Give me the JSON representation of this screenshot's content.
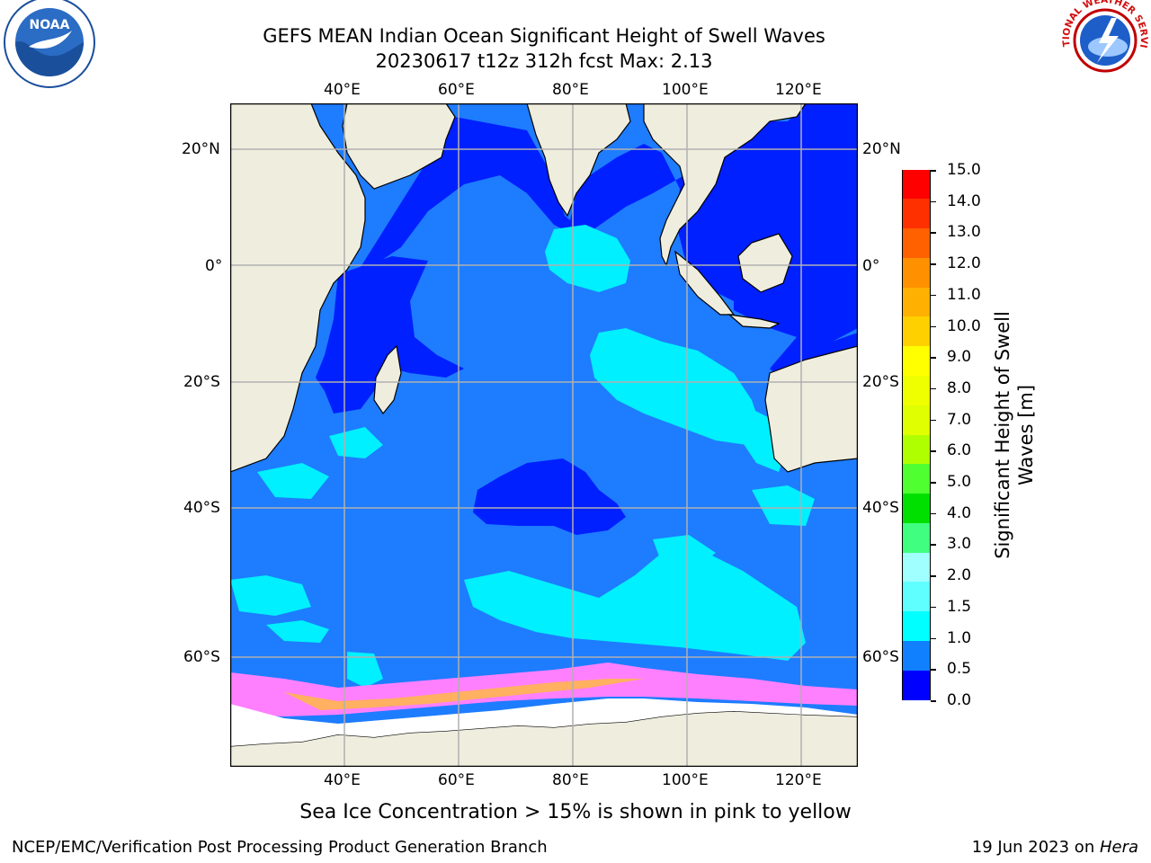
{
  "title_line1": "GEFS MEAN Indian Ocean Significant Height of Swell Waves",
  "title_line2": "20230617 t12z 312h fcst   Max: 2.13",
  "map": {
    "lon_labels": [
      "40°E",
      "60°E",
      "80°E",
      "100°E",
      "120°E"
    ],
    "lat_labels": [
      "20°N",
      "0°",
      "20°S",
      "40°S",
      "60°S"
    ],
    "lon_range": [
      20,
      130
    ],
    "lat_range": [
      -72,
      28
    ],
    "projection": "Mercator",
    "colors": {
      "land": "#efedde",
      "sea_0_0_5": "#0020ff",
      "sea_0_5_1_0": "#1e7cff",
      "sea_1_0_1_5": "#00f0ff",
      "ice_edge": "#ff80ff",
      "ice_inner": "#ffb060",
      "ice_land": "#ffffff",
      "grid": "#b0b0b0"
    }
  },
  "colorbar": {
    "label_line1": "Significant Height of Swell",
    "label_line2": "Waves [m]",
    "ticks": [
      "15.0",
      "14.0",
      "13.0",
      "12.0",
      "11.0",
      "10.0",
      "9.0",
      "8.0",
      "7.0",
      "6.0",
      "5.0",
      "4.0",
      "3.0",
      "2.0",
      "1.5",
      "1.0",
      "0.5",
      "0.0"
    ],
    "colors": [
      "#ff0000",
      "#ff3000",
      "#ff6000",
      "#ff9000",
      "#ffb000",
      "#ffd000",
      "#ffff00",
      "#f0ff00",
      "#e0ff00",
      "#b0ff00",
      "#50ff30",
      "#00e000",
      "#40ff80",
      "#a0ffff",
      "#60ffff",
      "#00ffff",
      "#1080ff",
      "#0000ff"
    ]
  },
  "caption": "Sea Ice Concentration > 15% is shown in pink to yellow",
  "footer_left": "NCEP/EMC/Verification Post Processing Product Generation Branch",
  "footer_right_date": "19 Jun 2023 on ",
  "footer_right_host": "Hera",
  "logos": {
    "left": "noaa-logo",
    "left_text": "NOAA",
    "right": "nws-logo",
    "right_text": "NATIONAL WEATHER SERVICE"
  }
}
